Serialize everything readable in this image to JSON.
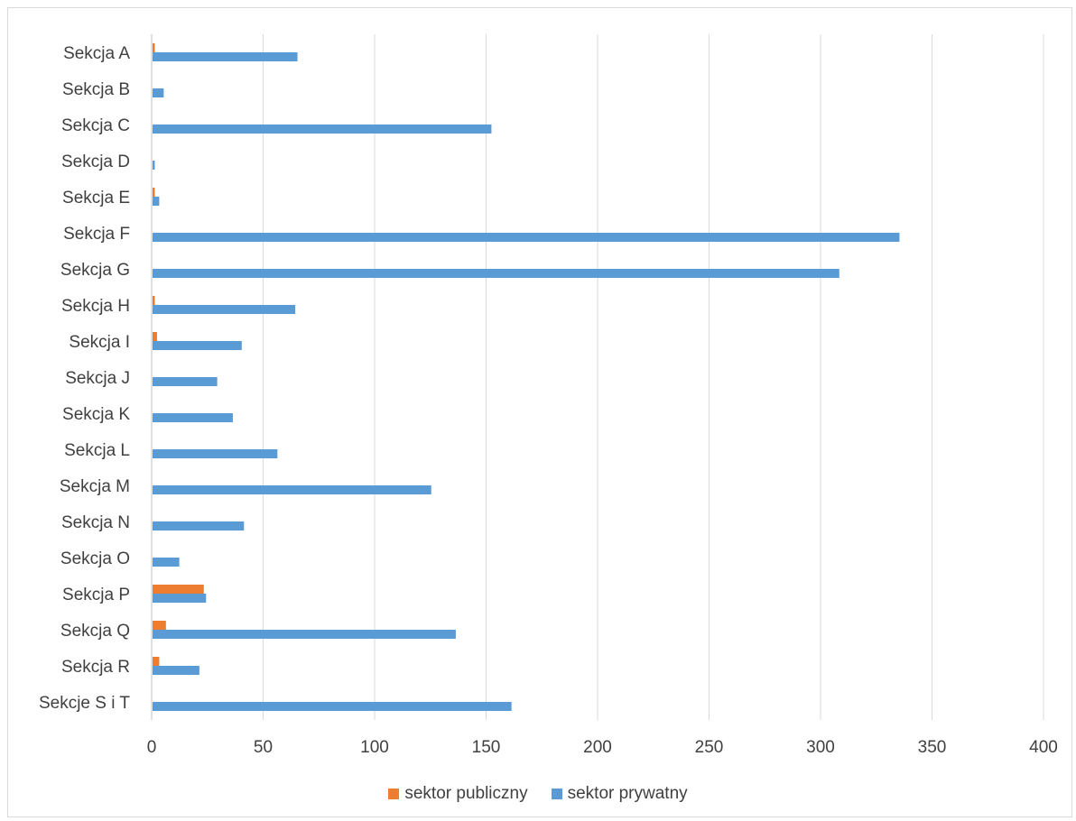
{
  "chart_data": {
    "type": "bar",
    "orientation": "horizontal",
    "categories": [
      "Sekcja A",
      "Sekcja B",
      "Sekcja C",
      "Sekcja D",
      "Sekcja E",
      "Sekcja F",
      "Sekcja G",
      "Sekcja H",
      "Sekcja I",
      "Sekcja J",
      "Sekcja K",
      "Sekcja L",
      "Sekcja M",
      "Sekcja N",
      "Sekcja O",
      "Sekcja P",
      "Sekcja Q",
      "Sekcja R",
      "Sekcje S i T"
    ],
    "series": [
      {
        "name": "sektor publiczny",
        "color": "#ed7d31",
        "values": [
          1,
          0,
          0,
          0,
          1,
          0,
          0,
          1,
          2,
          0,
          0,
          0,
          0,
          0,
          0,
          23,
          6,
          3,
          0
        ]
      },
      {
        "name": "sektor prywatny",
        "color": "#5b9bd5",
        "values": [
          65,
          5,
          152,
          1,
          3,
          335,
          308,
          64,
          40,
          29,
          36,
          56,
          125,
          41,
          12,
          24,
          136,
          21,
          161
        ]
      }
    ],
    "xlim": [
      0,
      400
    ],
    "xticks": [
      "0",
      "50",
      "100",
      "150",
      "200",
      "250",
      "300",
      "350",
      "400"
    ],
    "grid": true,
    "legend_position": "bottom"
  },
  "legend": {
    "items": [
      {
        "label": "sektor publiczny",
        "color": "#ed7d31"
      },
      {
        "label": "sektor prywatny",
        "color": "#5b9bd5"
      }
    ]
  }
}
